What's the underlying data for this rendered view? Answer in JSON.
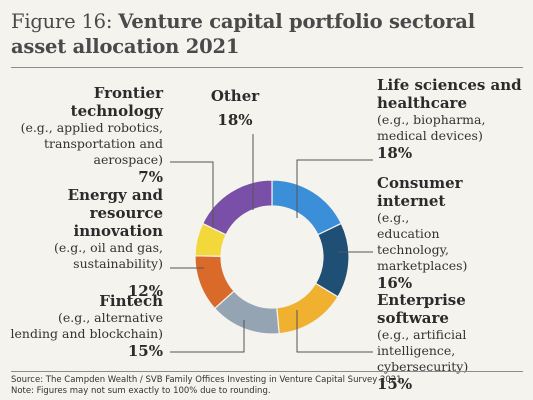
{
  "title": {
    "figure": "Figure 16:",
    "text": "Venture capital portfolio sectoral asset allocation 2021"
  },
  "chart_data": {
    "type": "pie",
    "donut": true,
    "slices": [
      {
        "name": "Life sciences and healthcare",
        "description": "(e.g., biopharma, medical devices)",
        "value": 18,
        "label": "18%",
        "color": "#3a8fd8"
      },
      {
        "name": "Consumer internet",
        "description": "(e.g., education technology, marketplaces)",
        "value": 16,
        "label": "16%",
        "color": "#1f4f75"
      },
      {
        "name": "Enterprise software",
        "description": "(e.g., artificial intelligence, cybersecurity)",
        "value": 15,
        "label": "15%",
        "color": "#f0b030"
      },
      {
        "name": "Fintech",
        "description": "(e.g., alternative lending and blockchain)",
        "value": 15,
        "label": "15%",
        "color": "#95a4b3"
      },
      {
        "name": "Energy and resource innovation",
        "description": "(e.g., oil and gas, sustainability)",
        "value": 12,
        "label": "12%",
        "color": "#d96a2a"
      },
      {
        "name": "Frontier technology",
        "description": "(e.g., applied robotics, transportation and aerospace)",
        "value": 7,
        "label": "7%",
        "color": "#f2d83a"
      },
      {
        "name": "Other",
        "description": "",
        "value": 18,
        "label": "18%",
        "color": "#7a4fa8"
      }
    ]
  },
  "labels": {
    "life": {
      "name": "Life sciences and healthcare",
      "desc": "(e.g., biopharma, medical devices)",
      "pct": "18%"
    },
    "consumer": {
      "name": "Consumer internet",
      "desc": "(e.g., education technology, marketplaces)",
      "pct": "16%"
    },
    "enterprise": {
      "name": "Enterprise software",
      "desc": "(e.g., artificial intelligence, cybersecurity)",
      "pct": "15%"
    },
    "fintech": {
      "name": "Fintech",
      "desc": "(e.g., alternative lending and blockchain)",
      "pct": "15%"
    },
    "energy": {
      "name": "Energy and resource innovation",
      "desc": "(e.g., oil and gas, sustainability)",
      "pct": "12%"
    },
    "frontier": {
      "name": "Frontier technology",
      "desc": "(e.g., applied robotics, transportation and aerospace)",
      "pct": "7%"
    },
    "other": {
      "name": "Other",
      "pct": "18%"
    }
  },
  "source": {
    "line1": "Source: The Campden Wealth / SVB Family Offices Investing in Venture Capital Survey 2021.",
    "line2": "Note: Figures may not sum exactly to 100% due to rounding."
  }
}
